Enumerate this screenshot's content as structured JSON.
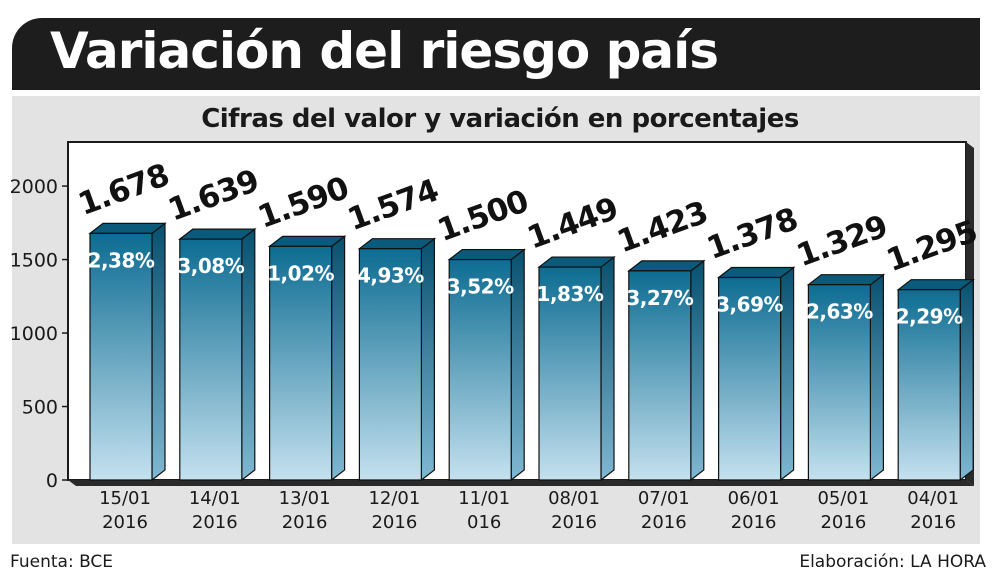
{
  "header": {
    "title": "Variación del riesgo país"
  },
  "footer": {
    "source": "Fuenta: BCE",
    "credit": "Elaboración: LA HORA"
  },
  "colors": {
    "bar_top": "#0d6c92",
    "bar_bottom": "#c4e1ef",
    "bar_side": "#08506f",
    "plot_bg": "#ffffff",
    "frame": "#1b1b1b"
  },
  "chart_data": {
    "type": "bar",
    "title": "Cifras del valor y variación en porcentajes",
    "categories": [
      "15/01\n2016",
      "14/01\n2016",
      "13/01\n2016",
      "12/01\n2016",
      "11/01\n016",
      "08/01\n2016",
      "07/01\n2016",
      "06/01\n2016",
      "05/01\n2016",
      "04/01\n2016"
    ],
    "values": [
      1678,
      1639,
      1590,
      1574,
      1500,
      1449,
      1423,
      1378,
      1329,
      1295
    ],
    "value_labels": [
      "1.678",
      "1.639",
      "1.590",
      "1.574",
      "1.500",
      "1.449",
      "1.423",
      "1.378",
      "1.329",
      "1.295"
    ],
    "variation_labels": [
      "2,38%",
      "3,08%",
      "1,02%",
      "4,93%",
      "3,52%",
      "1,83%",
      "3,27%",
      "3,69%",
      "2,63%",
      "2,29%"
    ],
    "yticks": [
      0,
      500,
      1000,
      1500,
      2000
    ],
    "ylim": [
      0,
      2300
    ],
    "xlabel": "",
    "ylabel": "",
    "grid": false,
    "legend": "none"
  }
}
